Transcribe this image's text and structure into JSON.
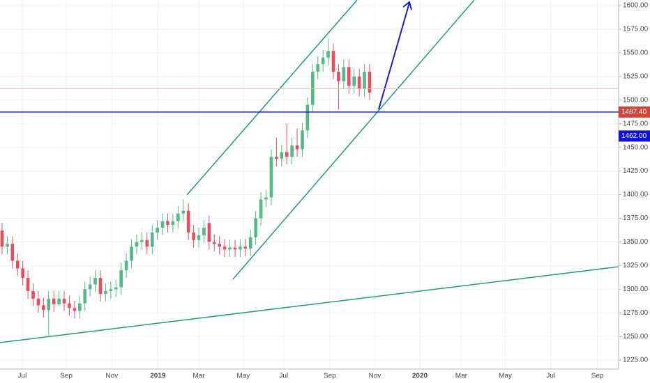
{
  "chart_data": {
    "type": "candlestick",
    "up_color": "#53b987",
    "down_color": "#eb4d5c",
    "grid": true,
    "xlim": [
      -0.4,
      119.1
    ],
    "xticks": [
      {
        "value": 3.9,
        "label": "Jul"
      },
      {
        "value": 12.4,
        "label": "Sep"
      },
      {
        "value": 21.2,
        "label": "Nov"
      },
      {
        "value": 30.1,
        "label": "2019"
      },
      {
        "value": 38,
        "label": "Mar"
      },
      {
        "value": 46.6,
        "label": "May"
      },
      {
        "value": 54.4,
        "label": "Jul"
      },
      {
        "value": 63.3,
        "label": "Sep"
      },
      {
        "value": 72,
        "label": "Nov"
      },
      {
        "value": 80.7,
        "label": "2020"
      },
      {
        "value": 88.7,
        "label": "Mar"
      },
      {
        "value": 97.2,
        "label": "May"
      },
      {
        "value": 106,
        "label": "Jul"
      },
      {
        "value": 115,
        "label": "Sep"
      }
    ],
    "ylim": [
      1215.5,
      1605.9
    ],
    "yticks": [
      {
        "value": 1225,
        "label": "1225.00"
      },
      {
        "value": 1250,
        "label": "1250.00"
      },
      {
        "value": 1275,
        "label": "1275.00"
      },
      {
        "value": 1300,
        "label": "1300.00"
      },
      {
        "value": 1325,
        "label": "1325.00"
      },
      {
        "value": 1350,
        "label": "1350.00"
      },
      {
        "value": 1375,
        "label": "1375.00"
      },
      {
        "value": 1400,
        "label": "1400.00"
      },
      {
        "value": 1425,
        "label": "1425.00"
      },
      {
        "value": 1450,
        "label": "1450.00"
      },
      {
        "value": 1475,
        "label": "1475.00"
      },
      {
        "value": 1500,
        "label": "1500.00"
      },
      {
        "value": 1525,
        "label": "1525.00"
      },
      {
        "value": 1550,
        "label": "1550.00"
      },
      {
        "value": 1575,
        "label": "1575.00"
      },
      {
        "value": 1600,
        "label": "1600.00"
      }
    ],
    "open": [
      1362,
      1345,
      1348,
      1330,
      1322,
      1312,
      1298,
      1290,
      1283,
      1278,
      1290,
      1284,
      1290,
      1285,
      1280,
      1277,
      1285,
      1300,
      1305,
      1312,
      1295,
      1298,
      1300,
      1302,
      1320,
      1330,
      1345,
      1350,
      1352,
      1345,
      1360,
      1365,
      1372,
      1368,
      1372,
      1380,
      1383,
      1360,
      1352,
      1357,
      1370,
      1350,
      1348,
      1345,
      1342,
      1344,
      1342,
      1345,
      1343,
      1355,
      1375,
      1395,
      1397,
      1440,
      1438,
      1445,
      1440,
      1452,
      1448,
      1468,
      1495,
      1530,
      1538,
      1545,
      1552,
      1530,
      1520,
      1535,
      1515,
      1525,
      1512,
      1530
    ],
    "high": [
      1370,
      1356,
      1356,
      1338,
      1330,
      1320,
      1306,
      1298,
      1291,
      1298,
      1298,
      1298,
      1298,
      1293,
      1288,
      1293,
      1308,
      1313,
      1320,
      1320,
      1306,
      1308,
      1310,
      1328,
      1338,
      1353,
      1358,
      1360,
      1360,
      1368,
      1373,
      1380,
      1380,
      1380,
      1388,
      1395,
      1391,
      1368,
      1365,
      1373,
      1378,
      1358,
      1356,
      1353,
      1352,
      1352,
      1353,
      1353,
      1363,
      1383,
      1403,
      1405,
      1448,
      1460,
      1453,
      1475,
      1460,
      1470,
      1476,
      1503,
      1538,
      1546,
      1553,
      1565,
      1560,
      1538,
      1543,
      1543,
      1533,
      1533,
      1538,
      1538
    ],
    "low": [
      1337,
      1337,
      1322,
      1314,
      1304,
      1290,
      1282,
      1275,
      1270,
      1250,
      1276,
      1282,
      1277,
      1272,
      1269,
      1269,
      1277,
      1292,
      1297,
      1287,
      1287,
      1290,
      1292,
      1294,
      1312,
      1322,
      1337,
      1342,
      1337,
      1337,
      1352,
      1357,
      1360,
      1360,
      1364,
      1372,
      1352,
      1344,
      1344,
      1349,
      1342,
      1340,
      1337,
      1334,
      1334,
      1334,
      1334,
      1335,
      1335,
      1347,
      1367,
      1387,
      1389,
      1430,
      1430,
      1432,
      1432,
      1440,
      1440,
      1460,
      1487,
      1522,
      1530,
      1537,
      1522,
      1490,
      1512,
      1507,
      1507,
      1504,
      1504,
      1500
    ],
    "close": [
      1345,
      1348,
      1330,
      1322,
      1312,
      1298,
      1290,
      1283,
      1278,
      1290,
      1284,
      1290,
      1285,
      1280,
      1277,
      1285,
      1300,
      1305,
      1312,
      1295,
      1298,
      1300,
      1302,
      1320,
      1330,
      1345,
      1350,
      1352,
      1345,
      1360,
      1365,
      1372,
      1368,
      1372,
      1380,
      1383,
      1360,
      1352,
      1357,
      1365,
      1350,
      1348,
      1345,
      1342,
      1344,
      1342,
      1345,
      1343,
      1355,
      1375,
      1395,
      1397,
      1440,
      1438,
      1445,
      1440,
      1452,
      1448,
      1468,
      1495,
      1530,
      1538,
      1545,
      1552,
      1530,
      1520,
      1535,
      1515,
      1525,
      1512,
      1530,
      1508
    ],
    "levels": [
      {
        "value": 1487.4,
        "label": "1487.40",
        "color": "#1f22c9",
        "label_color": "#d0453b"
      },
      {
        "value": 1512,
        "color": "#f2b8ad"
      }
    ],
    "price_labels": [
      {
        "value": 1462,
        "label": "1462.00",
        "color": "#1010e0"
      }
    ]
  }
}
